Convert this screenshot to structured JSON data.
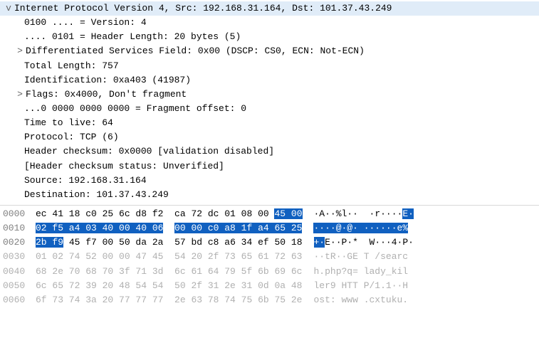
{
  "tree": {
    "header_line": "Internet Protocol Version 4, Src: 192.168.31.164, Dst: 101.37.43.249",
    "fields": [
      {
        "indent": "indent1b",
        "toggle": "",
        "text": "0100 .... = Version: 4"
      },
      {
        "indent": "indent1b",
        "toggle": "",
        "text": ".... 0101 = Header Length: 20 bytes (5)"
      },
      {
        "indent": "indent1",
        "toggle": ">",
        "text": "Differentiated Services Field: 0x00 (DSCP: CS0, ECN: Not-ECN)"
      },
      {
        "indent": "indent1b",
        "toggle": "",
        "text": "Total Length: 757"
      },
      {
        "indent": "indent1b",
        "toggle": "",
        "text": "Identification: 0xa403 (41987)"
      },
      {
        "indent": "indent1",
        "toggle": ">",
        "text": "Flags: 0x4000, Don't fragment"
      },
      {
        "indent": "indent1b",
        "toggle": "",
        "text": "...0 0000 0000 0000 = Fragment offset: 0"
      },
      {
        "indent": "indent1b",
        "toggle": "",
        "text": "Time to live: 64"
      },
      {
        "indent": "indent1b",
        "toggle": "",
        "text": "Protocol: TCP (6)"
      },
      {
        "indent": "indent1b",
        "toggle": "",
        "text": "Header checksum: 0x0000 [validation disabled]"
      },
      {
        "indent": "indent1b",
        "toggle": "",
        "text": "[Header checksum status: Unverified]"
      },
      {
        "indent": "indent1b",
        "toggle": "",
        "text": "Source: 192.168.31.164"
      },
      {
        "indent": "indent1b",
        "toggle": "",
        "text": "Destination: 101.37.43.249"
      }
    ]
  },
  "hex": {
    "rows": [
      {
        "offset": "0000",
        "faded": false,
        "bytes_a_plain": "ec 41 18 c0 25 6c d8 f2",
        "bytes_b_plain": "ca 72 dc 01 08 00 ",
        "bytes_b_hl": "45 00",
        "ascii_plain": "·A··%l··  ·r····",
        "ascii_hl": "E·"
      },
      {
        "offset": "0010",
        "faded": false,
        "bytes_a_hl": "02 f5 a4 03 40 00 40 06",
        "bytes_b_hl": "00 00 c0 a8 1f a4 65 25",
        "ascii_hl_a": "····@·@·",
        "ascii_hl_b": " ······e%"
      },
      {
        "offset": "0020",
        "faded": false,
        "bytes_a_hl": "2b f9",
        "bytes_a_plain": " 45 f7 00 50 da 2a",
        "bytes_b_plain": "57 bd c8 a6 34 ef 50 18",
        "ascii_hl": "+·",
        "ascii_plain": "E··P·*  W···4·P·"
      },
      {
        "offset": "0030",
        "faded": true,
        "bytes_a_plain": "01 02 74 52 00 00 47 45",
        "bytes_b_plain": "54 20 2f 73 65 61 72 63",
        "ascii_plain": "··tR··GE T /searc"
      },
      {
        "offset": "0040",
        "faded": true,
        "bytes_a_plain": "68 2e 70 68 70 3f 71 3d",
        "bytes_b_plain": "6c 61 64 79 5f 6b 69 6c",
        "ascii_plain": "h.php?q= lady_kil"
      },
      {
        "offset": "0050",
        "faded": true,
        "bytes_a_plain": "6c 65 72 39 20 48 54 54",
        "bytes_b_plain": "50 2f 31 2e 31 0d 0a 48",
        "ascii_plain": "ler9 HTT P/1.1··H"
      },
      {
        "offset": "0060",
        "faded": true,
        "bytes_a_plain": "6f 73 74 3a 20 77 77 77",
        "bytes_b_plain": "2e 63 78 74 75 6b 75 2e",
        "ascii_plain": "ost: www .cxtuku."
      }
    ]
  },
  "colors": {
    "selection_bg": "#e0ecf8",
    "highlight_bg": "#1060c0",
    "highlight_fg": "#ffffff",
    "faded": "#b0b0b0"
  }
}
